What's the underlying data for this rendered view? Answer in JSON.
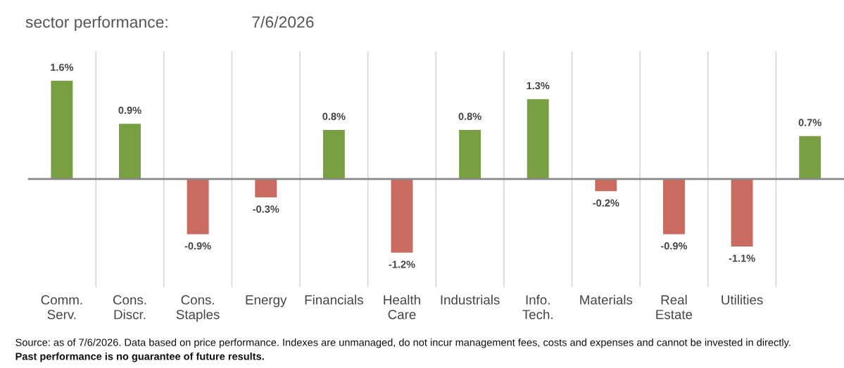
{
  "chart_data": {
    "type": "bar",
    "title": "sector performance:",
    "subtitle": "7/6/2026",
    "categories": [
      "Comm.\nServ.",
      "Cons.\nDiscr.",
      "Cons.\nStaples",
      "Energy",
      "Financials",
      "Health\nCare",
      "Industrials",
      "Info.\nTech.",
      "Materials",
      "Real\nEstate",
      "Utilities",
      null
    ],
    "values": [
      1.6,
      0.9,
      -0.9,
      -0.3,
      0.8,
      -1.2,
      0.8,
      1.3,
      -0.2,
      -0.9,
      -1.1,
      0.7
    ],
    "colors": [
      "#78a043",
      "#78a043",
      "#c96b60",
      "#c96b60",
      "#78a043",
      "#c96b60",
      "#78a043",
      "#78a043",
      "#c96b60",
      "#c96b60",
      "#c96b60",
      "#78a043"
    ],
    "value_labels": [
      "1.6%",
      "0.9%",
      "-0.9%",
      "-0.3%",
      "0.8%",
      "-1.2%",
      "0.8%",
      "1.3%",
      "-0.2%",
      "-0.9%",
      "-1.1%",
      "0.7%"
    ],
    "grid": "x",
    "annotations": [
      "Source: as of 7/6/2026. Data based on price performance. Indexes are unmanaged, do not incur management fees, costs and expenses and cannot be invested in directly.",
      "Past performance is no guarantee of future results."
    ]
  }
}
